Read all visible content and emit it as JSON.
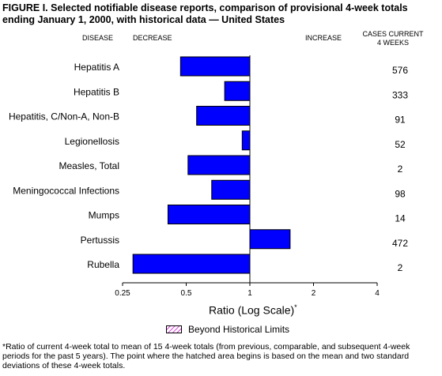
{
  "figure": {
    "title": "FIGURE I. Selected notifiable disease reports, comparison of provisional 4-week totals  ending January 1, 2000, with historical data — United States",
    "footnote": "*Ratio of current 4-week total to mean of 15 4-week totals (from previous, comparable, and subsequent 4-week periods for the past 5 years).  The point where the hatched area begins is based on the mean and two standard deviations of these 4-week totals."
  },
  "headers": {
    "disease": "DISEASE",
    "decrease": "DECREASE",
    "increase": "INCREASE",
    "cases_line1": "CASES CURRENT",
    "cases_line2": "4 WEEKS"
  },
  "legend": {
    "label": "Beyond Historical Limits"
  },
  "colors": {
    "bar": "#0000ff",
    "hatch": "#cc00cc"
  },
  "chart_data": {
    "type": "bar",
    "orientation": "horizontal",
    "scale": "log2",
    "baseline": 1,
    "categories": [
      "Hepatitis A",
      "Hepatitis B",
      "Hepatitis, C/Non-A, Non-B",
      "Legionellosis",
      "Measles, Total",
      "Meningococcal Infections",
      "Mumps",
      "Pertussis",
      "Rubella"
    ],
    "values": [
      0.47,
      0.76,
      0.56,
      0.92,
      0.51,
      0.66,
      0.41,
      1.55,
      0.28
    ],
    "cases": [
      "576",
      "333",
      "91",
      "52",
      "2",
      "98",
      "14",
      "472",
      "2"
    ],
    "xticks": [
      "0.25",
      "0.5",
      "1",
      "2",
      "4"
    ],
    "xlim": [
      0.25,
      4
    ],
    "xlabel": "Ratio (Log Scale)",
    "xlabel_mark": "*"
  }
}
